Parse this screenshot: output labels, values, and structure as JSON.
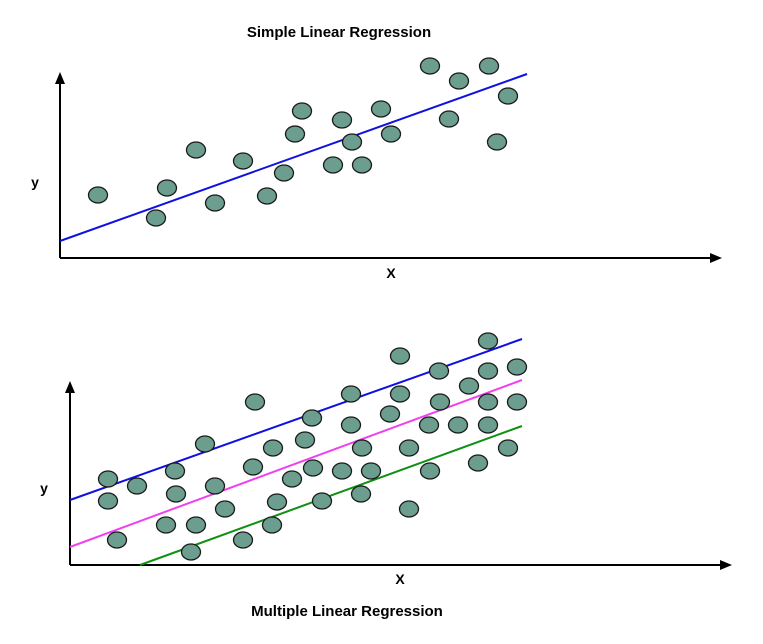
{
  "top_panel": {
    "title": "Simple Linear Regression",
    "xlabel": "X",
    "ylabel": "y"
  },
  "bottom_panel": {
    "title": "Multiple Linear Regression",
    "xlabel": "X",
    "ylabel": "y"
  },
  "colors": {
    "dot_fill": "#6b9e8f",
    "dot_stroke": "#1a1a1a",
    "line_blue": "#1010e0",
    "line_magenta": "#f040f0",
    "line_green": "#109010",
    "axis": "#000000"
  }
}
